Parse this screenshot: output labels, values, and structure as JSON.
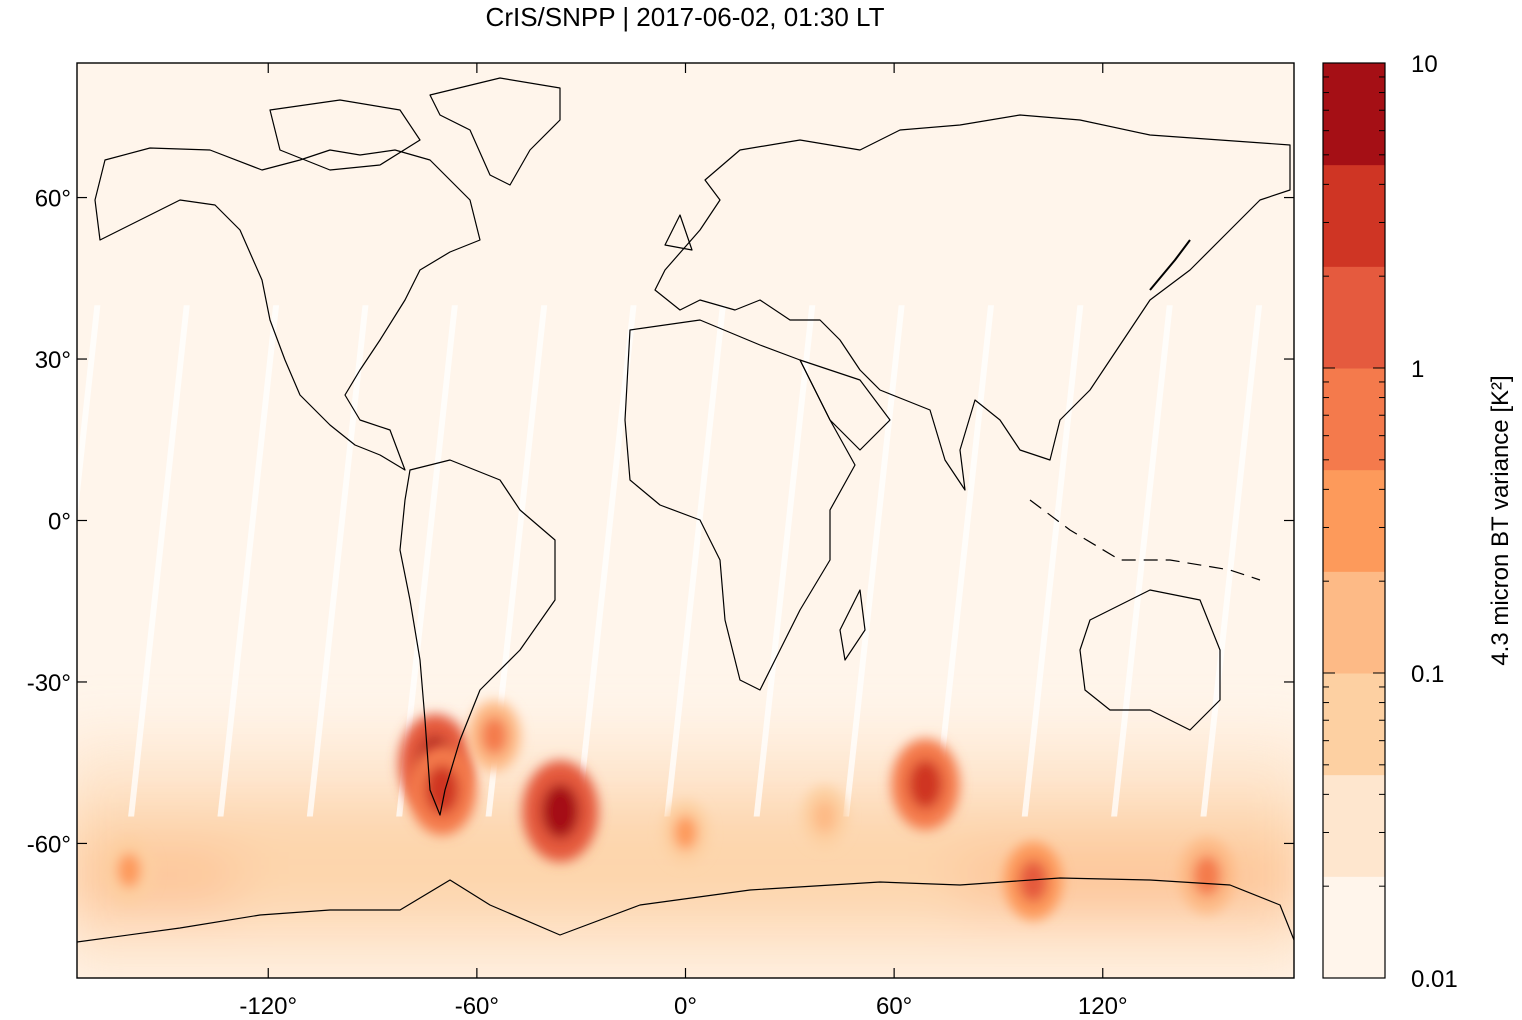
{
  "chart_data": {
    "type": "heatmap",
    "title": "CrIS/SNPP | 2017-06-02, 01:30 LT",
    "xlabel": "",
    "ylabel": "",
    "xlim": [
      -175,
      175
    ],
    "ylim": [
      -85,
      85
    ],
    "x_ticks": [
      {
        "value": -120,
        "label": "-120°"
      },
      {
        "value": -60,
        "label": "-60°"
      },
      {
        "value": 0,
        "label": "0°"
      },
      {
        "value": 60,
        "label": "60°"
      },
      {
        "value": 120,
        "label": "120°"
      }
    ],
    "y_ticks": [
      {
        "value": 60,
        "label": "60°"
      },
      {
        "value": 30,
        "label": "30°"
      },
      {
        "value": 0,
        "label": "0°"
      },
      {
        "value": -30,
        "label": "-30°"
      },
      {
        "value": -60,
        "label": "-60°"
      }
    ],
    "colorbar": {
      "label": "4.3 micron BT variance [K²]",
      "scale": "log",
      "range": [
        0.01,
        10
      ],
      "tick_labels": [
        {
          "value": 10,
          "label": "10"
        },
        {
          "value": 1,
          "label": "1"
        },
        {
          "value": 0.1,
          "label": "0.1"
        },
        {
          "value": 0.01,
          "label": "0.01"
        }
      ],
      "level_colors": [
        "#fff5eb",
        "#fee6ce",
        "#fdd0a2",
        "#fdba86",
        "#fd9a5b",
        "#f47a4c",
        "#e55a3e",
        "#cf3524",
        "#a50f15"
      ]
    },
    "background_color": "#fff5eb",
    "hotspots": [
      {
        "lon": -72,
        "lat": -45,
        "value": 5.0
      },
      {
        "lon": -70,
        "lat": -50,
        "value": 3.0
      },
      {
        "lon": -36,
        "lat": -54,
        "value": 7.0
      },
      {
        "lon": 69,
        "lat": -49,
        "value": 3.0
      },
      {
        "lon": 100,
        "lat": -67,
        "value": 1.0
      },
      {
        "lon": 150,
        "lat": -66,
        "value": 0.8
      },
      {
        "lon": -55,
        "lat": -40,
        "value": 0.5
      },
      {
        "lon": -160,
        "lat": -65,
        "value": 0.3
      },
      {
        "lon": 0,
        "lat": -58,
        "value": 0.25
      },
      {
        "lon": 40,
        "lat": -55,
        "value": 0.2
      }
    ]
  }
}
